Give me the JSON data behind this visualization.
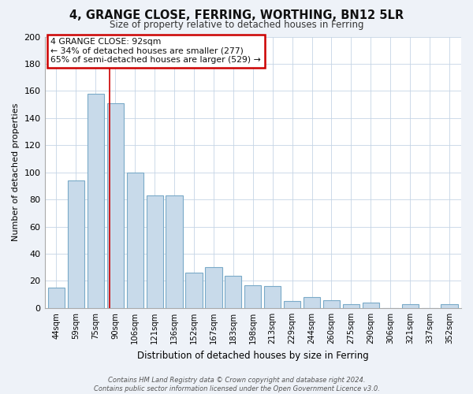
{
  "title": "4, GRANGE CLOSE, FERRING, WORTHING, BN12 5LR",
  "subtitle": "Size of property relative to detached houses in Ferring",
  "xlabel": "Distribution of detached houses by size in Ferring",
  "ylabel": "Number of detached properties",
  "bar_color": "#c8daea",
  "bar_edge_color": "#7aaac8",
  "categories": [
    "44sqm",
    "59sqm",
    "75sqm",
    "90sqm",
    "106sqm",
    "121sqm",
    "136sqm",
    "152sqm",
    "167sqm",
    "183sqm",
    "198sqm",
    "213sqm",
    "229sqm",
    "244sqm",
    "260sqm",
    "275sqm",
    "290sqm",
    "306sqm",
    "321sqm",
    "337sqm",
    "352sqm"
  ],
  "values": [
    15,
    94,
    158,
    151,
    100,
    83,
    83,
    26,
    30,
    24,
    17,
    16,
    5,
    8,
    6,
    3,
    4,
    0,
    3,
    0,
    3
  ],
  "ylim": [
    0,
    200
  ],
  "yticks": [
    0,
    20,
    40,
    60,
    80,
    100,
    120,
    140,
    160,
    180,
    200
  ],
  "annotation_box_text_line1": "4 GRANGE CLOSE: 92sqm",
  "annotation_box_text_line2": "← 34% of detached houses are smaller (277)",
  "annotation_box_text_line3": "65% of semi-detached houses are larger (529) →",
  "annotation_box_color": "#ffffff",
  "annotation_box_edge_color": "#cc0000",
  "property_line_x": 2.72,
  "property_line_color": "#cc0000",
  "footer_line1": "Contains HM Land Registry data © Crown copyright and database right 2024.",
  "footer_line2": "Contains public sector information licensed under the Open Government Licence v3.0.",
  "bg_color": "#eef2f8",
  "plot_bg_color": "#ffffff",
  "grid_color": "#c5d5e5"
}
